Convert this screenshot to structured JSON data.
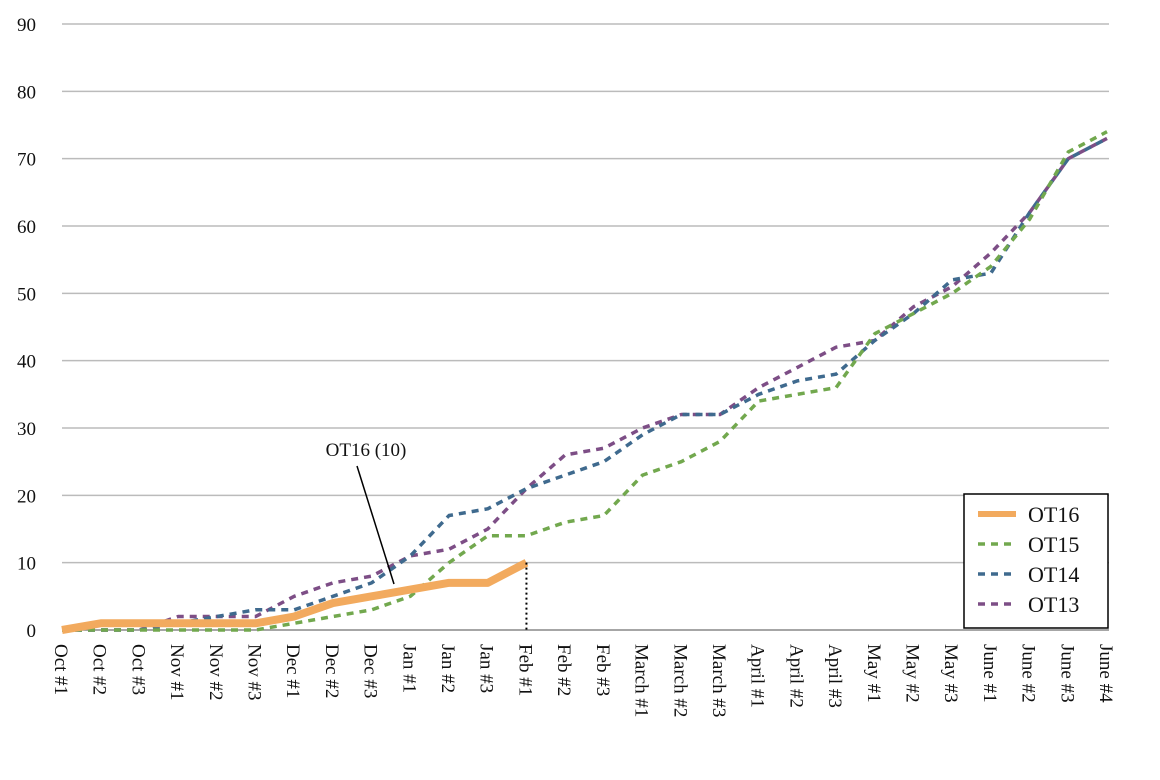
{
  "chart_data": {
    "type": "line",
    "categories": [
      "Oct #1",
      "Oct #2",
      "Oct #3",
      "Nov #1",
      "Nov #2",
      "Nov #3",
      "Dec #1",
      "Dec #2",
      "Dec #3",
      "Jan #1",
      "Jan #2",
      "Jan #3",
      "Feb #1",
      "Feb #2",
      "Feb #3",
      "March #1",
      "March #2",
      "March #3",
      "April #1",
      "April #2",
      "April #3",
      "May #1",
      "May #2",
      "May #3",
      "June #1",
      "June #2",
      "June #3",
      "June #4"
    ],
    "series": [
      {
        "name": "OT16",
        "color": "#f2aa5e",
        "linestyle": "solid",
        "values": [
          0,
          1,
          1,
          1,
          1,
          1,
          2,
          4,
          5,
          6,
          7,
          7,
          10,
          null,
          null,
          null,
          null,
          null,
          null,
          null,
          null,
          null,
          null,
          null,
          null,
          null,
          null,
          null
        ]
      },
      {
        "name": "OT15",
        "color": "#72a84e",
        "linestyle": "dashed",
        "values": [
          0,
          0,
          0,
          0,
          0,
          0,
          1,
          2,
          3,
          5,
          10,
          14,
          14,
          16,
          17,
          23,
          25,
          28,
          34,
          35,
          36,
          44,
          47,
          50,
          54,
          61,
          71,
          74
        ]
      },
      {
        "name": "OT14",
        "color": "#3f6a8e",
        "linestyle": "dashed",
        "values": [
          0,
          0,
          0,
          1,
          2,
          3,
          3,
          5,
          7,
          11,
          17,
          18,
          21,
          23,
          25,
          29,
          32,
          32,
          35,
          37,
          38,
          43,
          47,
          52,
          53,
          62,
          70,
          73
        ]
      },
      {
        "name": "OT13",
        "color": "#7d4e86",
        "linestyle": "dashed",
        "values": [
          0,
          0,
          0,
          2,
          2,
          2,
          5,
          7,
          8,
          11,
          12,
          15,
          21,
          26,
          27,
          30,
          32,
          32,
          36,
          39,
          42,
          43,
          48,
          51,
          56,
          62,
          70,
          73
        ]
      }
    ],
    "annotations": [
      {
        "text": "OT16 (10)"
      }
    ],
    "ylim": [
      0,
      90
    ],
    "yticks": [
      0,
      10,
      20,
      30,
      40,
      50,
      60,
      70,
      80,
      90
    ],
    "grid": true,
    "legend": "lower right"
  }
}
